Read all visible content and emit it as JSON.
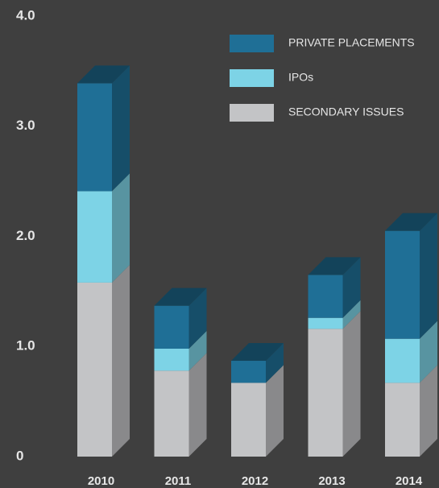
{
  "chart_data": {
    "type": "bar3d_stacked",
    "categories": [
      "2010",
      "2011",
      "2012",
      "2013",
      "2014"
    ],
    "series": [
      {
        "name": "SECONDARY ISSUES",
        "color": "#c3c4c6",
        "values": [
          1.58,
          0.78,
          0.67,
          1.16,
          0.67
        ]
      },
      {
        "name": "IPOs",
        "color": "#7dd3e6",
        "values": [
          0.83,
          0.2,
          0,
          0.1,
          0.4
        ]
      },
      {
        "name": "PRIVATE PLACEMENTS",
        "color": "#1f6f96",
        "values": [
          0.98,
          0.39,
          0.2,
          0.39,
          0.98
        ]
      }
    ],
    "ylim": [
      0,
      4
    ],
    "yticks": [
      {
        "value": 0,
        "label": "0"
      },
      {
        "value": 1,
        "label": "1.0"
      },
      {
        "value": 2,
        "label": "2.0"
      },
      {
        "value": 3,
        "label": "3.0"
      },
      {
        "value": 4,
        "label": "4.0"
      }
    ]
  }
}
